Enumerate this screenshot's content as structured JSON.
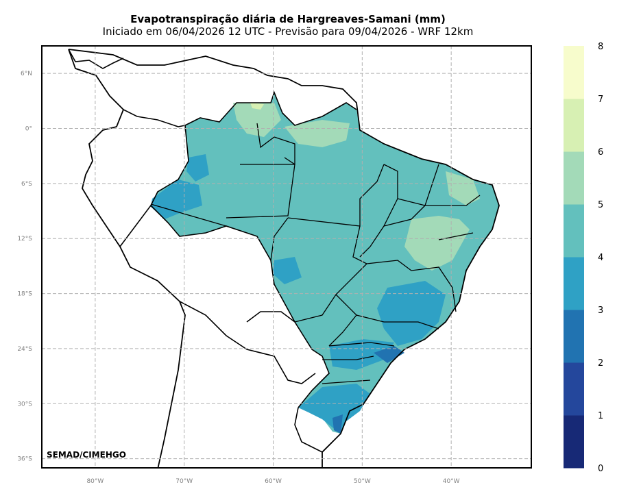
{
  "title": "Evapotranspiração diária de Hargreaves-Samani (mm)",
  "subtitle": "Iniciado em 06/04/2026 12 UTC - Previsão para 09/04/2026 - WRF 12km",
  "credit": "SEMAD/CIMEHGO",
  "map": {
    "lon_range": [
      -86,
      -31
    ],
    "lat_range": [
      -37,
      9
    ],
    "lat_ticks": [
      {
        "value": 6,
        "label": "6°N"
      },
      {
        "value": 0,
        "label": "0°"
      },
      {
        "value": -6,
        "label": "6°S"
      },
      {
        "value": -12,
        "label": "12°S"
      },
      {
        "value": -18,
        "label": "18°S"
      },
      {
        "value": -24,
        "label": "24°S"
      },
      {
        "value": -30,
        "label": "30°S"
      },
      {
        "value": -36,
        "label": "36°S"
      }
    ],
    "lon_ticks": [
      {
        "value": -80,
        "label": "80°W"
      },
      {
        "value": -70,
        "label": "70°W"
      },
      {
        "value": -60,
        "label": "60°W"
      },
      {
        "value": -50,
        "label": "50°W"
      },
      {
        "value": -40,
        "label": "40°W"
      }
    ],
    "grid": true,
    "colors": {
      "land": "#ffffff",
      "border": "#000000",
      "grid": "#b0b0b0",
      "axis_text": "#808080"
    }
  },
  "colorbar": {
    "ticks": [
      "0",
      "1",
      "2",
      "3",
      "4",
      "5",
      "6",
      "7",
      "8"
    ],
    "colors": [
      "#172976",
      "#24479c",
      "#2173b1",
      "#2fa1c5",
      "#63c0bd",
      "#a3dab8",
      "#d7f0b3",
      "#f7fccc"
    ]
  }
}
